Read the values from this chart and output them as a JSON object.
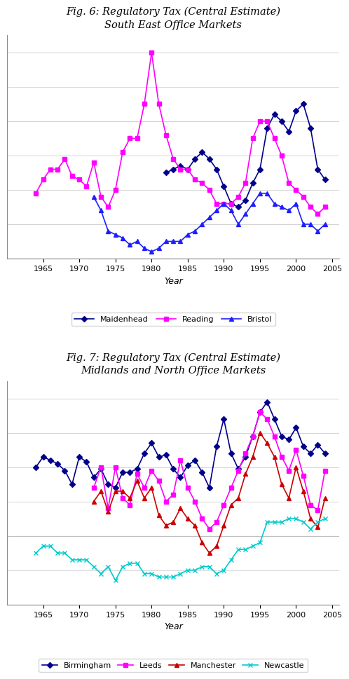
{
  "fig6_title": "Fig. 6: Regulatory Tax (Central Estimate)\nSouth East Office Markets",
  "fig7_title": "Fig. 7: Regulatory Tax (Central Estimate)\nMidlands and North Office Markets",
  "mhd_x": [
    1982,
    1983,
    1984,
    1985,
    1986,
    1987,
    1988,
    1989,
    1990,
    1991,
    1992,
    1993,
    1994,
    1995,
    1996,
    1997,
    1998,
    1999,
    2000,
    2001,
    2002,
    2003,
    2004
  ],
  "mhd_y": [
    3.5,
    3.6,
    3.7,
    3.6,
    3.9,
    4.1,
    3.9,
    3.6,
    3.1,
    2.6,
    2.5,
    2.7,
    3.2,
    3.6,
    4.8,
    5.2,
    5.0,
    4.7,
    5.3,
    5.5,
    4.8,
    3.6,
    3.3
  ],
  "rdg_x": [
    1964,
    1965,
    1966,
    1967,
    1968,
    1969,
    1970,
    1971,
    1972,
    1973,
    1974,
    1975,
    1976,
    1977,
    1978,
    1979,
    1980,
    1981,
    1982,
    1983,
    1984,
    1985,
    1986,
    1987,
    1988,
    1989,
    1990,
    1991,
    1992,
    1993,
    1994,
    1995,
    1996,
    1997,
    1998,
    1999,
    2000,
    2001,
    2002,
    2003,
    2004
  ],
  "rdg_y": [
    2.9,
    3.3,
    3.6,
    3.6,
    3.9,
    3.4,
    3.3,
    3.1,
    3.8,
    2.8,
    2.5,
    3.0,
    4.1,
    4.5,
    4.5,
    5.5,
    7.0,
    5.5,
    4.6,
    3.9,
    3.6,
    3.6,
    3.3,
    3.2,
    3.0,
    2.6,
    2.6,
    2.6,
    2.8,
    3.2,
    4.5,
    5.0,
    5.0,
    4.5,
    4.0,
    3.2,
    3.0,
    2.8,
    2.5,
    2.3,
    2.5
  ],
  "brs_x": [
    1972,
    1973,
    1974,
    1975,
    1976,
    1977,
    1978,
    1979,
    1980,
    1981,
    1982,
    1983,
    1984,
    1985,
    1986,
    1987,
    1988,
    1989,
    1990,
    1991,
    1992,
    1993,
    1994,
    1995,
    1996,
    1997,
    1998,
    1999,
    2000,
    2001,
    2002,
    2003,
    2004
  ],
  "brs_y": [
    2.8,
    2.4,
    1.8,
    1.7,
    1.6,
    1.4,
    1.5,
    1.3,
    1.2,
    1.3,
    1.5,
    1.5,
    1.5,
    1.7,
    1.8,
    2.0,
    2.2,
    2.4,
    2.6,
    2.4,
    2.0,
    2.3,
    2.6,
    2.9,
    2.9,
    2.6,
    2.5,
    2.4,
    2.6,
    2.0,
    2.0,
    1.8,
    2.0
  ],
  "bir_x": [
    1964,
    1965,
    1966,
    1967,
    1968,
    1969,
    1970,
    1971,
    1972,
    1973,
    1974,
    1975,
    1976,
    1977,
    1978,
    1979,
    1980,
    1981,
    1982,
    1983,
    1984,
    1985,
    1986,
    1987,
    1988,
    1989,
    1990,
    1991,
    1992,
    1993,
    1994,
    1995,
    1996,
    1997,
    1998,
    1999,
    2000,
    2001,
    2002,
    2003,
    2004
  ],
  "bir_y": [
    40,
    46,
    44,
    42,
    38,
    30,
    46,
    43,
    34,
    39,
    30,
    28,
    37,
    37,
    39,
    48,
    54,
    46,
    47,
    39,
    34,
    41,
    44,
    37,
    28,
    52,
    68,
    48,
    39,
    46,
    58,
    72,
    78,
    68,
    58,
    56,
    63,
    52,
    48,
    53,
    48
  ],
  "lee_x": [
    1972,
    1973,
    1974,
    1975,
    1976,
    1977,
    1978,
    1979,
    1980,
    1981,
    1982,
    1983,
    1984,
    1985,
    1986,
    1987,
    1988,
    1989,
    1990,
    1991,
    1992,
    1993,
    1994,
    1995,
    1996,
    1997,
    1998,
    1999,
    2000,
    2001,
    2002,
    2003,
    2004
  ],
  "lee_y": [
    28,
    40,
    16,
    40,
    22,
    18,
    36,
    28,
    38,
    32,
    20,
    24,
    44,
    28,
    20,
    10,
    4,
    8,
    18,
    28,
    38,
    48,
    58,
    72,
    68,
    58,
    46,
    38,
    50,
    35,
    18,
    15,
    38
  ],
  "man_x": [
    1972,
    1973,
    1974,
    1975,
    1976,
    1977,
    1978,
    1979,
    1980,
    1981,
    1982,
    1983,
    1984,
    1985,
    1986,
    1987,
    1988,
    1989,
    1990,
    1991,
    1992,
    1993,
    1994,
    1995,
    1996,
    1997,
    1998,
    1999,
    2000,
    2001,
    2002,
    2003,
    2004
  ],
  "man_y": [
    20,
    26,
    14,
    26,
    26,
    22,
    32,
    22,
    28,
    12,
    6,
    8,
    16,
    10,
    6,
    -4,
    -10,
    -6,
    6,
    18,
    22,
    36,
    46,
    60,
    54,
    46,
    30,
    22,
    40,
    26,
    10,
    5,
    22
  ],
  "new_x": [
    1964,
    1965,
    1966,
    1967,
    1968,
    1969,
    1970,
    1971,
    1972,
    1973,
    1974,
    1975,
    1976,
    1977,
    1978,
    1979,
    1980,
    1981,
    1982,
    1983,
    1984,
    1985,
    1986,
    1987,
    1988,
    1989,
    1990,
    1991,
    1992,
    1993,
    1994,
    1995,
    1996,
    1997,
    1998,
    1999,
    2000,
    2001,
    2002,
    2003,
    2004
  ],
  "new_y": [
    -10,
    -6,
    -6,
    -10,
    -10,
    -14,
    -14,
    -14,
    -18,
    -22,
    -18,
    -26,
    -18,
    -16,
    -16,
    -22,
    -22,
    -24,
    -24,
    -24,
    -22,
    -20,
    -20,
    -18,
    -18,
    -22,
    -20,
    -14,
    -8,
    -8,
    -6,
    -4,
    8,
    8,
    8,
    10,
    10,
    8,
    4,
    8,
    10
  ],
  "color_maidenhead": "#00008B",
  "color_reading": "#FF00FF",
  "color_bristol": "#1E1EFF",
  "color_birmingham": "#00008B",
  "color_leeds": "#FF00FF",
  "color_manchester": "#CC0000",
  "color_newcastle": "#00CCCC",
  "xlabel": "Year",
  "fig6_ylim": [
    1.0,
    7.5
  ],
  "fig7_ylim": [
    -40,
    90
  ]
}
